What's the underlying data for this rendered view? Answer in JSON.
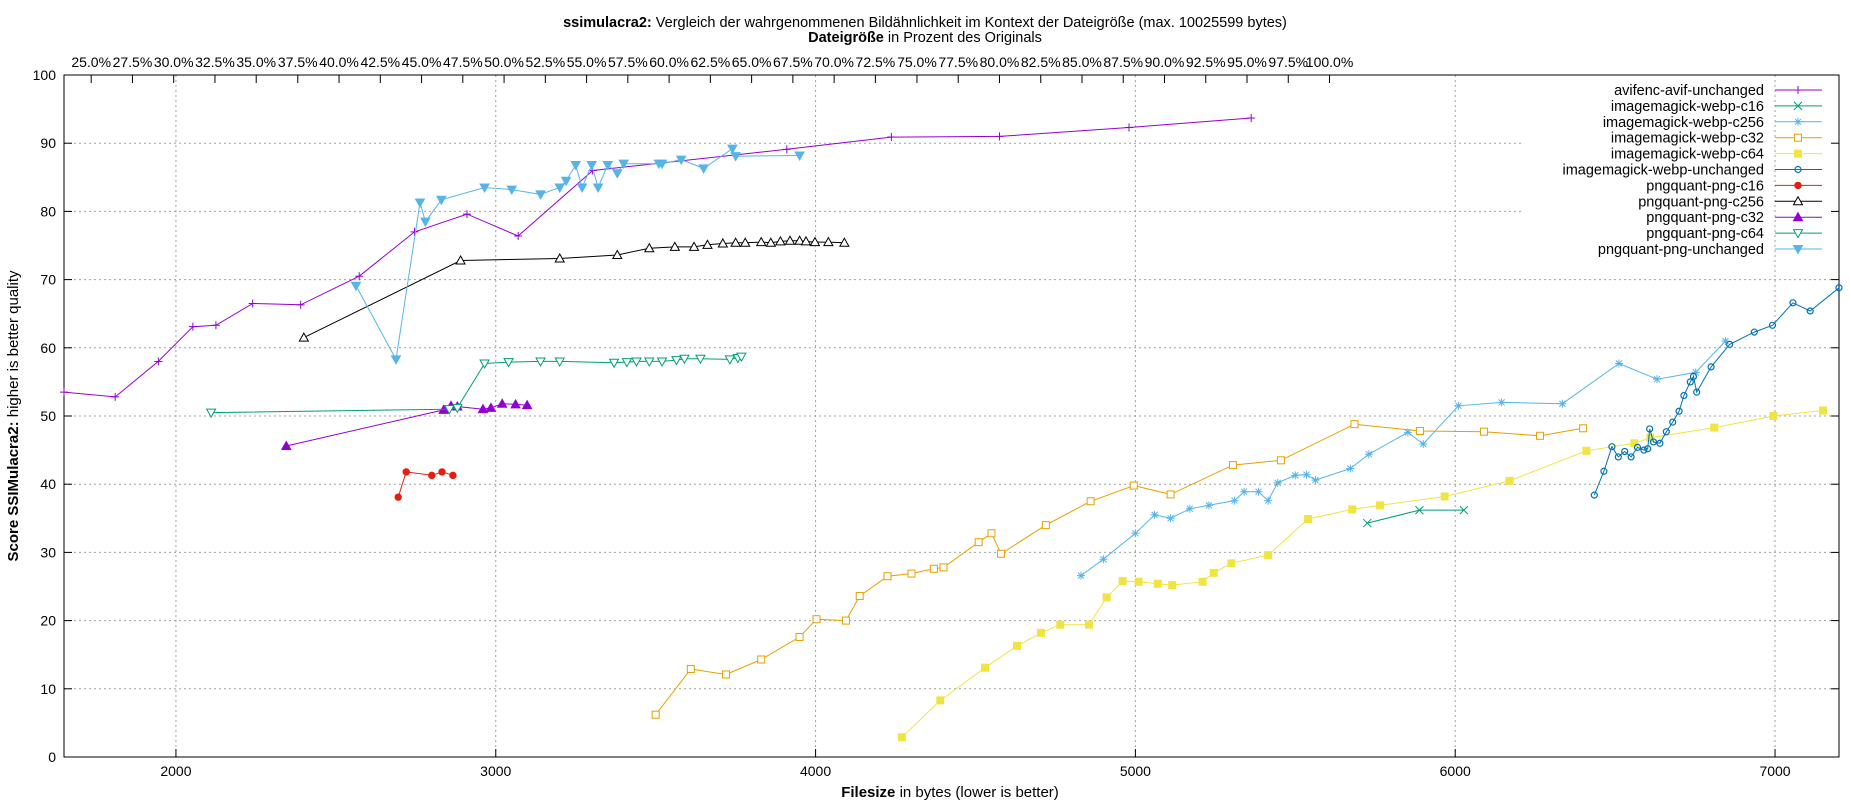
{
  "chart_data": {
    "type": "line",
    "title_bold": "ssimulacra2:",
    "title_rest": " Vergleich der wahrgenommenen Bildähnlichkeit im Kontext der Dateigröße (max. 10025599 bytes)",
    "subtitle_bold": "Dateigröße",
    "subtitle_rest": " in Prozent des Originals",
    "xlabel_bold": "Filesize",
    "xlabel_rest": " in bytes (lower is better)",
    "ylabel_bold": "Score SSIMulacra2:",
    "ylabel_rest": " higher is better quality",
    "xlim": [
      1650,
      7200
    ],
    "ylim": [
      0,
      100
    ],
    "x_ticks": [
      2000,
      3000,
      4000,
      5000,
      6000,
      7000
    ],
    "y_ticks": [
      0,
      10,
      20,
      30,
      40,
      50,
      60,
      70,
      80,
      90,
      100
    ],
    "x2_ticks": [
      {
        "x": 1735,
        "label": "25.0%"
      },
      {
        "x": 1864,
        "label": "27.5%"
      },
      {
        "x": 1993,
        "label": "30.0%"
      },
      {
        "x": 2122,
        "label": "32.5%"
      },
      {
        "x": 2251,
        "label": "35.0%"
      },
      {
        "x": 2381,
        "label": "37.5%"
      },
      {
        "x": 2510,
        "label": "40.0%"
      },
      {
        "x": 2639,
        "label": "42.5%"
      },
      {
        "x": 2768,
        "label": "45.0%"
      },
      {
        "x": 2897,
        "label": "47.5%"
      },
      {
        "x": 3026,
        "label": "50.0%"
      },
      {
        "x": 3155,
        "label": "52.5%"
      },
      {
        "x": 3284,
        "label": "55.0%"
      },
      {
        "x": 3413,
        "label": "57.5%"
      },
      {
        "x": 3542,
        "label": "60.0%"
      },
      {
        "x": 3671,
        "label": "62.5%"
      },
      {
        "x": 3800,
        "label": "65.0%"
      },
      {
        "x": 3929,
        "label": "67.5%"
      },
      {
        "x": 4058,
        "label": "70.0%"
      },
      {
        "x": 4187,
        "label": "72.5%"
      },
      {
        "x": 4317,
        "label": "75.0%"
      },
      {
        "x": 4446,
        "label": "77.5%"
      },
      {
        "x": 4575,
        "label": "80.0%"
      },
      {
        "x": 4704,
        "label": "82.5%"
      },
      {
        "x": 4833,
        "label": "85.0%"
      },
      {
        "x": 4962,
        "label": "87.5%"
      },
      {
        "x": 5091,
        "label": "90.0%"
      },
      {
        "x": 5220,
        "label": "92.5%"
      },
      {
        "x": 5349,
        "label": "95.0%"
      },
      {
        "x": 5478,
        "label": "97.5%"
      },
      {
        "x": 5607,
        "label": "100.0%"
      }
    ],
    "grid": true,
    "legend_position": "top-right",
    "series": [
      {
        "name": "avifenc-avif-unchanged",
        "color": "#9400d3",
        "marker": "plus",
        "points": [
          [
            1650,
            53.5
          ],
          [
            1810,
            52.8
          ],
          [
            1945,
            58.0
          ],
          [
            2053,
            63.1
          ],
          [
            2125,
            63.3
          ],
          [
            2240,
            66.5
          ],
          [
            2390,
            66.3
          ],
          [
            2573,
            70.5
          ],
          [
            2746,
            77.0
          ],
          [
            2910,
            79.6
          ],
          [
            3070,
            76.4
          ],
          [
            3303,
            86.0
          ],
          [
            3910,
            89.1
          ],
          [
            4237,
            90.9
          ],
          [
            4575,
            91.0
          ],
          [
            4980,
            92.3
          ],
          [
            5362,
            93.7
          ]
        ]
      },
      {
        "name": "imagemagick-webp-c16",
        "color": "#009e73",
        "marker": "x",
        "points": [
          [
            5725,
            34.3
          ],
          [
            5888,
            36.2
          ],
          [
            6027,
            36.2
          ]
        ]
      },
      {
        "name": "imagemagick-webp-c256",
        "color": "#56b4e9",
        "marker": "star",
        "points": [
          [
            4830,
            26.6
          ],
          [
            4900,
            29.0
          ],
          [
            5000,
            32.8
          ],
          [
            5060,
            35.5
          ],
          [
            5110,
            35.0
          ],
          [
            5170,
            36.4
          ],
          [
            5230,
            36.9
          ],
          [
            5310,
            37.6
          ],
          [
            5340,
            38.9
          ],
          [
            5385,
            38.9
          ],
          [
            5415,
            37.6
          ],
          [
            5445,
            40.2
          ],
          [
            5500,
            41.3
          ],
          [
            5535,
            41.4
          ],
          [
            5563,
            40.6
          ],
          [
            5672,
            42.3
          ],
          [
            5730,
            44.4
          ],
          [
            5852,
            47.6
          ],
          [
            5900,
            45.9
          ],
          [
            6010,
            51.5
          ],
          [
            6145,
            52.0
          ],
          [
            6335,
            51.8
          ],
          [
            6512,
            57.7
          ],
          [
            6631,
            55.4
          ],
          [
            6752,
            56.4
          ],
          [
            6845,
            61.0
          ]
        ]
      },
      {
        "name": "imagemagick-webp-c32",
        "color": "#e69f00",
        "marker": "square",
        "points": [
          [
            3500,
            6.2
          ],
          [
            3610,
            12.9
          ],
          [
            3720,
            12.1
          ],
          [
            3830,
            14.3
          ],
          [
            3950,
            17.6
          ],
          [
            4003,
            20.2
          ],
          [
            4095,
            20.0
          ],
          [
            4138,
            23.6
          ],
          [
            4225,
            26.5
          ],
          [
            4300,
            26.9
          ],
          [
            4370,
            27.6
          ],
          [
            4400,
            27.8
          ],
          [
            4510,
            31.5
          ],
          [
            4550,
            32.8
          ],
          [
            4580,
            29.8
          ],
          [
            4720,
            34.0
          ],
          [
            4860,
            37.5
          ],
          [
            4995,
            39.8
          ],
          [
            5110,
            38.5
          ],
          [
            5305,
            42.8
          ],
          [
            5455,
            43.5
          ],
          [
            5685,
            48.8
          ],
          [
            5890,
            47.8
          ],
          [
            6090,
            47.7
          ],
          [
            6265,
            47.1
          ],
          [
            6400,
            48.2
          ]
        ]
      },
      {
        "name": "imagemagick-webp-c64",
        "color": "#f0e442",
        "marker": "filled-square",
        "points": [
          [
            4270,
            2.9
          ],
          [
            4390,
            8.3
          ],
          [
            4530,
            13.1
          ],
          [
            4630,
            16.3
          ],
          [
            4705,
            18.2
          ],
          [
            4765,
            19.4
          ],
          [
            4855,
            19.4
          ],
          [
            4910,
            23.4
          ],
          [
            4960,
            25.8
          ],
          [
            5010,
            25.7
          ],
          [
            5070,
            25.4
          ],
          [
            5115,
            25.2
          ],
          [
            5210,
            25.7
          ],
          [
            5245,
            27.0
          ],
          [
            5300,
            28.4
          ],
          [
            5415,
            29.6
          ],
          [
            5540,
            34.9
          ],
          [
            5678,
            36.3
          ],
          [
            5765,
            36.9
          ],
          [
            5967,
            38.2
          ],
          [
            6170,
            40.5
          ],
          [
            6410,
            44.9
          ],
          [
            6560,
            46.0
          ],
          [
            6610,
            46.8
          ],
          [
            6810,
            48.3
          ],
          [
            6995,
            50.0
          ],
          [
            7150,
            50.8
          ]
        ]
      },
      {
        "name": "imagemagick-webp-unchanged",
        "color": "#0072b2",
        "marker": "circle",
        "points": [
          [
            6435,
            38.4
          ],
          [
            6465,
            41.9
          ],
          [
            6490,
            45.5
          ],
          [
            6510,
            44.0
          ],
          [
            6530,
            44.8
          ],
          [
            6550,
            44.0
          ],
          [
            6570,
            45.4
          ],
          [
            6590,
            45.0
          ],
          [
            6602,
            45.2
          ],
          [
            6608,
            48.1
          ],
          [
            6620,
            46.2
          ],
          [
            6640,
            46.0
          ],
          [
            6660,
            47.7
          ],
          [
            6680,
            49.1
          ],
          [
            6700,
            50.7
          ],
          [
            6715,
            53.0
          ],
          [
            6735,
            55.0
          ],
          [
            6745,
            55.8
          ],
          [
            6755,
            53.5
          ],
          [
            6800,
            57.2
          ],
          [
            6858,
            60.5
          ],
          [
            6935,
            62.3
          ],
          [
            6992,
            63.3
          ],
          [
            7056,
            66.6
          ],
          [
            7110,
            65.4
          ],
          [
            7200,
            68.8
          ]
        ]
      },
      {
        "name": "pngquant-png-c16",
        "color": "#e51e10",
        "marker": "filled-circle",
        "points": [
          [
            2695,
            38.1
          ],
          [
            2720,
            41.8
          ],
          [
            2800,
            41.3
          ],
          [
            2832,
            41.8
          ],
          [
            2866,
            41.3
          ]
        ]
      },
      {
        "name": "pngquant-png-c256",
        "color": "#000000",
        "marker": "triangle",
        "points": [
          [
            2400,
            61.5
          ],
          [
            2890,
            72.8
          ],
          [
            3200,
            73.1
          ],
          [
            3380,
            73.6
          ],
          [
            3480,
            74.6
          ],
          [
            3560,
            74.8
          ],
          [
            3620,
            74.8
          ],
          [
            3662,
            75.1
          ],
          [
            3710,
            75.3
          ],
          [
            3750,
            75.4
          ],
          [
            3780,
            75.4
          ],
          [
            3830,
            75.5
          ],
          [
            3860,
            75.4
          ],
          [
            3890,
            75.6
          ],
          [
            3920,
            75.7
          ],
          [
            3950,
            75.7
          ],
          [
            3970,
            75.6
          ],
          [
            3998,
            75.5
          ],
          [
            4040,
            75.5
          ],
          [
            4090,
            75.4
          ]
        ]
      },
      {
        "name": "pngquant-png-c32",
        "color": "#9400d3",
        "marker": "filled-triangle",
        "points": [
          [
            2345,
            45.6
          ],
          [
            2837,
            50.9
          ],
          [
            2860,
            51.5
          ],
          [
            2880,
            51.4
          ],
          [
            2960,
            51.0
          ],
          [
            2985,
            51.2
          ],
          [
            3020,
            51.8
          ],
          [
            3062,
            51.7
          ],
          [
            3098,
            51.6
          ]
        ]
      },
      {
        "name": "pngquant-png-c64",
        "color": "#009e73",
        "marker": "triangle-down",
        "points": [
          [
            2110,
            50.5
          ],
          [
            2855,
            51.0
          ],
          [
            2880,
            51.2
          ],
          [
            2965,
            57.7
          ],
          [
            3040,
            57.9
          ],
          [
            3140,
            58.0
          ],
          [
            3200,
            58.0
          ],
          [
            3370,
            57.8
          ],
          [
            3410,
            57.9
          ],
          [
            3440,
            58.0
          ],
          [
            3480,
            58.0
          ],
          [
            3520,
            58.0
          ],
          [
            3565,
            58.2
          ],
          [
            3590,
            58.4
          ],
          [
            3640,
            58.4
          ],
          [
            3732,
            58.3
          ],
          [
            3757,
            58.5
          ],
          [
            3768,
            58.7
          ]
        ]
      },
      {
        "name": "pngquant-png-unchanged",
        "color": "#56b4e9",
        "marker": "filled-triangle-down",
        "points": [
          [
            2563,
            69.1
          ],
          [
            2688,
            58.3
          ],
          [
            2763,
            81.3
          ],
          [
            2780,
            78.5
          ],
          [
            2830,
            81.7
          ],
          [
            2965,
            83.5
          ],
          [
            3050,
            83.2
          ],
          [
            3140,
            82.5
          ],
          [
            3200,
            83.5
          ],
          [
            3220,
            84.5
          ],
          [
            3250,
            86.8
          ],
          [
            3270,
            83.5
          ],
          [
            3300,
            86.8
          ],
          [
            3320,
            83.5
          ],
          [
            3350,
            86.8
          ],
          [
            3380,
            85.6
          ],
          [
            3400,
            87.0
          ],
          [
            3510,
            87.0
          ],
          [
            3520,
            87.0
          ],
          [
            3580,
            87.6
          ],
          [
            3650,
            86.3
          ],
          [
            3740,
            89.2
          ],
          [
            3750,
            88.1
          ],
          [
            3950,
            88.2
          ]
        ]
      }
    ]
  }
}
